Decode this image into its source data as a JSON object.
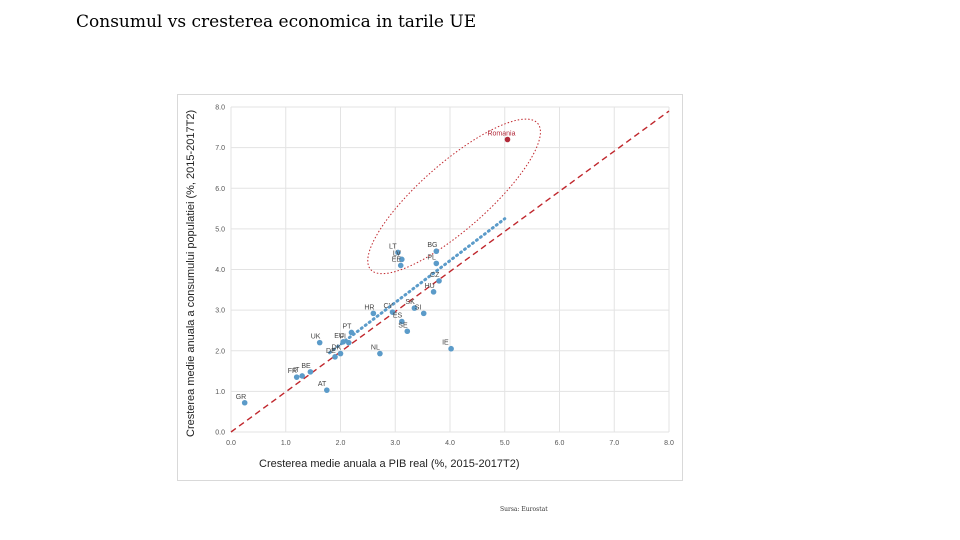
{
  "slide": {
    "title": "Consumul vs cresterea economica in tarile UE",
    "source": "Sursa: Eurostat"
  },
  "chart_data": {
    "type": "scatter",
    "title": "",
    "xlabel": "Cresterea medie anuala a PIB real (%, 2015-2017T2)",
    "ylabel": "Cresterea medie anuala a consumului populatiei (%, 2015-2017T2)",
    "xlim": [
      0,
      8
    ],
    "ylim": [
      0,
      8
    ],
    "xticks": [
      "0.0",
      "1.0",
      "2.0",
      "3.0",
      "4.0",
      "5.0",
      "6.0",
      "7.0",
      "8.0"
    ],
    "yticks": [
      "0.0",
      "1.0",
      "2.0",
      "3.0",
      "4.0",
      "5.0",
      "6.0",
      "7.0",
      "8.0"
    ],
    "grid": true,
    "colors": {
      "points": "#5b9bc9",
      "highlight": "#b22a3a",
      "trend": "#5b9bc9",
      "diagonal": "#c0272d",
      "ellipse": "#c0272d"
    },
    "points": [
      {
        "label": "GR",
        "x": 0.25,
        "y": 0.72
      },
      {
        "label": "FR",
        "x": 1.2,
        "y": 1.35
      },
      {
        "label": "IT",
        "x": 1.3,
        "y": 1.38
      },
      {
        "label": "BE",
        "x": 1.45,
        "y": 1.48
      },
      {
        "label": "AT",
        "x": 1.75,
        "y": 1.03
      },
      {
        "label": "UK",
        "x": 1.62,
        "y": 2.2
      },
      {
        "label": "DE",
        "x": 1.9,
        "y": 1.85
      },
      {
        "label": "DK",
        "x": 2.0,
        "y": 1.93
      },
      {
        "label": "EU",
        "x": 2.05,
        "y": 2.22
      },
      {
        "label": "PT",
        "x": 2.2,
        "y": 2.45
      },
      {
        "label": "FI",
        "x": 2.15,
        "y": 2.2
      },
      {
        "label": "NL",
        "x": 2.72,
        "y": 1.93
      },
      {
        "label": "HR",
        "x": 2.6,
        "y": 2.92
      },
      {
        "label": "CY",
        "x": 2.95,
        "y": 2.95
      },
      {
        "label": "LT",
        "x": 3.05,
        "y": 4.42
      },
      {
        "label": "LV",
        "x": 3.12,
        "y": 4.25
      },
      {
        "label": "EE",
        "x": 3.1,
        "y": 4.1
      },
      {
        "label": "ES",
        "x": 3.12,
        "y": 2.72
      },
      {
        "label": "SE",
        "x": 3.22,
        "y": 2.48
      },
      {
        "label": "SK",
        "x": 3.35,
        "y": 3.05
      },
      {
        "label": "SI",
        "x": 3.52,
        "y": 2.92
      },
      {
        "label": "BG",
        "x": 3.75,
        "y": 4.45
      },
      {
        "label": "PL",
        "x": 3.75,
        "y": 4.15
      },
      {
        "label": "CZ",
        "x": 3.8,
        "y": 3.72
      },
      {
        "label": "HU",
        "x": 3.7,
        "y": 3.45
      },
      {
        "label": "IE",
        "x": 4.02,
        "y": 2.05
      },
      {
        "label": "Romania",
        "x": 5.05,
        "y": 7.2,
        "highlight": true
      }
    ],
    "trendline": {
      "from": [
        1.8,
        1.95
      ],
      "to": [
        5.0,
        5.25
      ],
      "style": "dotted"
    },
    "diagonal": {
      "from": [
        0,
        0
      ],
      "to": [
        8,
        7.9
      ],
      "style": "dashed"
    },
    "ellipse": {
      "from": [
        2.55,
        4.0
      ],
      "to": [
        5.6,
        7.6
      ],
      "style": "dotted"
    }
  }
}
